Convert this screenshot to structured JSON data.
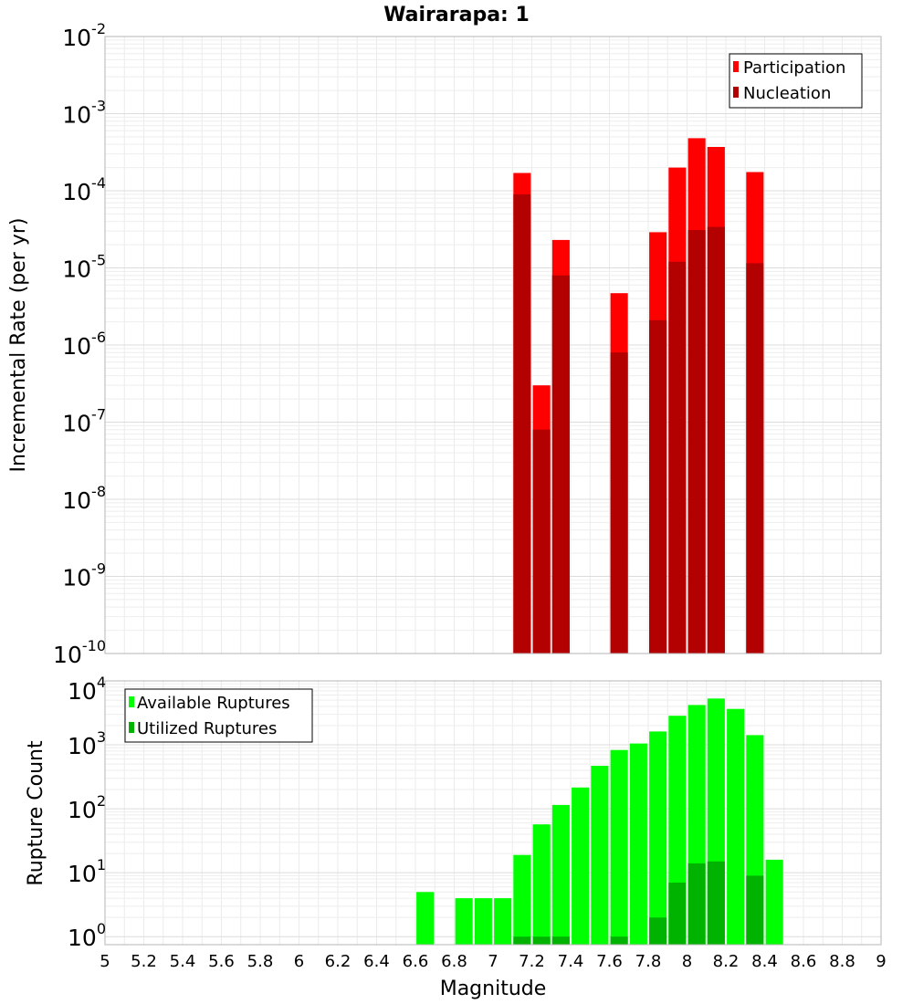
{
  "chart_data": [
    {
      "type": "bar",
      "title": "Wairarapa: 1",
      "xlabel": "",
      "ylabel": "Incremental Rate (per yr)",
      "yscale": "log",
      "ylim_exponents": [
        -10,
        -2
      ],
      "xlim": [
        5,
        9
      ],
      "y_tick_base": "10",
      "y_tick_exponents": [
        "-2",
        "-3",
        "-4",
        "-5",
        "-6",
        "-7",
        "-8",
        "-9",
        "-10"
      ],
      "legend_position": "top-right",
      "bar_width": 0.09,
      "series": [
        {
          "name": "Participation",
          "color": "#ff0000",
          "x": [
            7.15,
            7.25,
            7.35,
            7.65,
            7.85,
            7.95,
            8.05,
            8.15,
            8.35
          ],
          "values": [
            0.00017,
            3e-07,
            2.3e-05,
            4.7e-06,
            2.9e-05,
            0.0002,
            0.00048,
            0.00037,
            0.000175
          ]
        },
        {
          "name": "Nucleation",
          "color": "#b30000",
          "x": [
            7.15,
            7.25,
            7.35,
            7.65,
            7.85,
            7.95,
            8.05,
            8.15,
            8.35
          ],
          "values": [
            9e-05,
            8e-08,
            8e-06,
            8e-07,
            2.1e-06,
            1.2e-05,
            3.1e-05,
            3.4e-05,
            1.15e-05
          ]
        }
      ]
    },
    {
      "type": "bar",
      "title": "",
      "xlabel": "Magnitude",
      "ylabel": "Rupture Count",
      "yscale": "log",
      "ylim": [
        0.75,
        10000
      ],
      "xlim": [
        5,
        9
      ],
      "x_ticks": [
        "5",
        "5.2",
        "5.4",
        "5.6",
        "5.8",
        "6",
        "6.2",
        "6.4",
        "6.6",
        "6.8",
        "7",
        "7.2",
        "7.4",
        "7.6",
        "7.8",
        "8",
        "8.2",
        "8.4",
        "8.6",
        "8.8",
        "9"
      ],
      "y_tick_base": "10",
      "y_tick_exponents": [
        "4",
        "3",
        "2",
        "1",
        "0"
      ],
      "legend_position": "top-left",
      "bar_width": 0.09,
      "series": [
        {
          "name": "Available Ruptures",
          "color": "#00ff00",
          "x": [
            6.65,
            6.85,
            6.95,
            7.05,
            7.15,
            7.25,
            7.35,
            7.45,
            7.55,
            7.65,
            7.75,
            7.85,
            7.95,
            8.05,
            8.15,
            8.25,
            8.35,
            8.45
          ],
          "values": [
            5,
            4,
            4,
            4,
            19,
            57,
            115,
            215,
            470,
            830,
            1050,
            1620,
            2850,
            4200,
            5300,
            3650,
            1420,
            16
          ]
        },
        {
          "name": "Utilized Ruptures",
          "color": "#00b300",
          "x": [
            7.15,
            7.25,
            7.35,
            7.65,
            7.85,
            7.95,
            8.05,
            8.15,
            8.35
          ],
          "values": [
            1,
            1,
            1,
            1,
            2,
            7,
            14,
            15,
            9
          ]
        }
      ]
    }
  ]
}
